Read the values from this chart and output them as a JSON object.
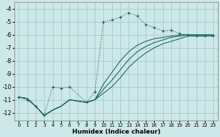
{
  "xlabel": "Humidex (Indice chaleur)",
  "bg_color": "#cce8e8",
  "grid_color": "#aacccc",
  "line_color": "#1a6060",
  "xlim": [
    -0.5,
    23.5
  ],
  "ylim": [
    -12.6,
    -3.5
  ],
  "xticks": [
    0,
    1,
    2,
    3,
    4,
    5,
    6,
    7,
    8,
    9,
    10,
    11,
    12,
    13,
    14,
    15,
    16,
    17,
    18,
    19,
    20,
    21,
    22,
    23
  ],
  "yticks": [
    -12,
    -11,
    -10,
    -9,
    -8,
    -7,
    -6,
    -5,
    -4
  ],
  "series": [
    {
      "x": [
        0,
        1,
        2,
        3,
        4,
        5,
        6,
        8,
        9,
        10,
        11,
        12,
        13,
        14,
        15,
        16,
        17,
        18,
        19,
        20,
        21,
        22,
        23
      ],
      "y": [
        -10.8,
        -11.0,
        -11.5,
        -12.2,
        -10.0,
        -10.1,
        -10.0,
        -11.2,
        -10.4,
        -5.0,
        -4.85,
        -4.65,
        -4.3,
        -4.55,
        -5.2,
        -5.45,
        -5.7,
        -5.65,
        -5.9,
        -6.0,
        -6.05,
        -6.05,
        -6.05
      ],
      "marker": "+",
      "linestyle": ":"
    },
    {
      "x": [
        0,
        1,
        2,
        3,
        4,
        5,
        6,
        7,
        8,
        9,
        10,
        11,
        12,
        13,
        14,
        15,
        16,
        17,
        18,
        19,
        20,
        21,
        22,
        23
      ],
      "y": [
        -10.8,
        -10.9,
        -11.5,
        -12.2,
        -11.8,
        -11.5,
        -11.0,
        -11.1,
        -11.2,
        -11.0,
        -10.5,
        -10.0,
        -9.3,
        -8.5,
        -7.9,
        -7.4,
        -7.0,
        -6.7,
        -6.5,
        -6.3,
        -6.1,
        -6.1,
        -6.1,
        -6.1
      ],
      "marker": null,
      "linestyle": "-"
    },
    {
      "x": [
        0,
        1,
        2,
        3,
        4,
        5,
        6,
        7,
        8,
        9,
        10,
        11,
        12,
        13,
        14,
        15,
        16,
        17,
        18,
        19,
        20,
        21,
        22,
        23
      ],
      "y": [
        -10.8,
        -10.9,
        -11.5,
        -12.2,
        -11.8,
        -11.5,
        -11.0,
        -11.1,
        -11.2,
        -11.0,
        -10.2,
        -9.5,
        -8.7,
        -7.9,
        -7.3,
        -6.9,
        -6.6,
        -6.4,
        -6.2,
        -6.1,
        -6.0,
        -6.0,
        -6.0,
        -6.0
      ],
      "marker": null,
      "linestyle": "-"
    },
    {
      "x": [
        0,
        1,
        2,
        3,
        4,
        5,
        6,
        7,
        8,
        9,
        10,
        11,
        12,
        13,
        14,
        15,
        16,
        17,
        18,
        19,
        20,
        21,
        22,
        23
      ],
      "y": [
        -10.8,
        -10.9,
        -11.5,
        -12.2,
        -11.8,
        -11.5,
        -11.0,
        -11.1,
        -11.2,
        -11.0,
        -9.8,
        -8.9,
        -8.0,
        -7.3,
        -6.8,
        -6.5,
        -6.3,
        -6.2,
        -6.1,
        -6.0,
        -6.0,
        -6.0,
        -6.0,
        -6.0
      ],
      "marker": null,
      "linestyle": "-"
    }
  ]
}
